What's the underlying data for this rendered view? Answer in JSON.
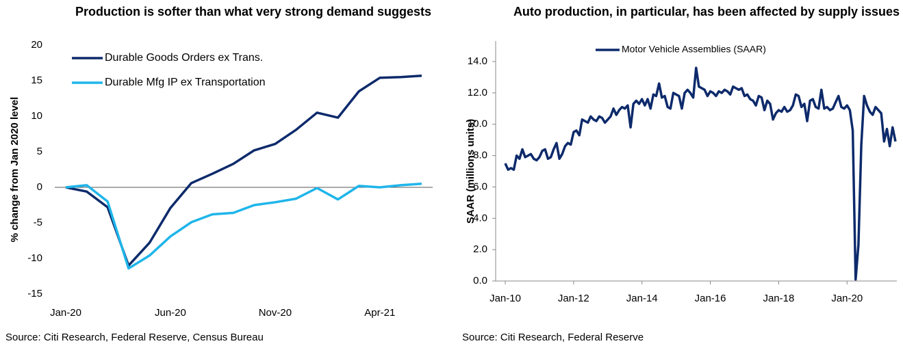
{
  "chart_data": [
    {
      "type": "line",
      "title": "Production is softer than what very strong demand suggests",
      "ylabel": "% change from Jan 2020 level",
      "source": "Source: Citi Research, Federal Reserve, Census Bureau",
      "categories": [
        "Jan-20",
        null,
        null,
        null,
        null,
        "Jun-20",
        null,
        null,
        null,
        null,
        "Nov-20",
        null,
        null,
        null,
        null,
        "Apr-21",
        null,
        null
      ],
      "series": [
        {
          "name": "Durable Goods Orders ex Trans.",
          "color": "#0d2a6b",
          "values": [
            0,
            -0.6,
            -2.8,
            -11,
            -7.8,
            -2.9,
            0.6,
            1.9,
            3.3,
            5.2,
            6.1,
            8.1,
            10.5,
            9.8,
            13.5,
            15.4,
            15.5,
            15.7
          ]
        },
        {
          "name": "Durable Mfg IP ex Transportation",
          "color": "#1fb5ea",
          "values": [
            0,
            0.3,
            -2,
            -11.4,
            -9.6,
            -6.9,
            -4.9,
            -3.8,
            -3.6,
            -2.5,
            -2.1,
            -1.6,
            -0.1,
            -1.7,
            0.2,
            0,
            0.3,
            0.5
          ]
        }
      ],
      "ylim": [
        -15,
        20
      ],
      "yticks": [
        -15,
        -10,
        -5,
        0,
        5,
        10,
        15,
        20
      ],
      "legend": "top-left",
      "zero_line": true
    },
    {
      "type": "line",
      "title": "Auto production, in particular, has been affected by supply issues",
      "ylabel": "SAAR (millions units)",
      "source": "Source: Citi Research, Federal Reserve",
      "categories": [
        "Jan-10",
        null,
        null,
        null,
        null,
        null,
        null,
        null,
        null,
        null,
        null,
        null,
        null,
        null,
        null,
        null,
        null,
        null,
        null,
        null,
        null,
        null,
        null,
        null,
        "Jan-12",
        null,
        null,
        null,
        null,
        null,
        null,
        null,
        null,
        null,
        null,
        null,
        null,
        null,
        null,
        null,
        null,
        null,
        null,
        null,
        null,
        null,
        null,
        null,
        "Jan-14",
        null,
        null,
        null,
        null,
        null,
        null,
        null,
        null,
        null,
        null,
        null,
        null,
        null,
        null,
        null,
        null,
        null,
        null,
        null,
        null,
        null,
        null,
        null,
        "Jan-16",
        null,
        null,
        null,
        null,
        null,
        null,
        null,
        null,
        null,
        null,
        null,
        null,
        null,
        null,
        null,
        null,
        null,
        null,
        null,
        null,
        null,
        null,
        null,
        "Jan-18",
        null,
        null,
        null,
        null,
        null,
        null,
        null,
        null,
        null,
        null,
        null,
        null,
        null,
        null,
        null,
        null,
        null,
        null,
        null,
        null,
        null,
        null,
        null,
        "Jan-20",
        null,
        null,
        null,
        null,
        null,
        null,
        null,
        null,
        null,
        null,
        null,
        null,
        null,
        null,
        null,
        null,
        null
      ],
      "series": [
        {
          "name": "Motor Vehicle Assemblies (SAAR)",
          "color": "#0d2a6b",
          "values": [
            7.5,
            7.1,
            7.2,
            7.1,
            8.0,
            7.8,
            8.4,
            7.9,
            8.0,
            8.1,
            7.8,
            7.7,
            7.9,
            8.3,
            8.4,
            7.8,
            7.9,
            8.4,
            8.8,
            7.8,
            8.1,
            8.6,
            8.8,
            8.7,
            9.5,
            9.6,
            9.3,
            10.3,
            10.2,
            10.1,
            10.5,
            10.3,
            10.2,
            10.5,
            10.4,
            10.1,
            10.3,
            10.5,
            11.0,
            10.6,
            10.9,
            11.1,
            11.0,
            11.2,
            9.8,
            11.3,
            11.5,
            11.3,
            11.6,
            11.2,
            11.6,
            11.0,
            11.9,
            11.8,
            12.6,
            11.7,
            11.8,
            11.1,
            11.0,
            12.0,
            11.9,
            11.8,
            11.0,
            12.0,
            12.2,
            12.0,
            11.7,
            13.6,
            12.4,
            12.3,
            12.2,
            11.8,
            12.1,
            12.0,
            11.8,
            12.1,
            12.0,
            12.2,
            12.1,
            11.9,
            12.4,
            12.3,
            12.2,
            12.3,
            11.8,
            11.9,
            11.6,
            11.5,
            11.2,
            11.8,
            11.7,
            10.9,
            11.5,
            11.3,
            10.3,
            10.7,
            10.9,
            10.8,
            11.1,
            10.8,
            10.9,
            11.2,
            11.9,
            11.8,
            11.1,
            11.3,
            10.2,
            11.5,
            11.6,
            11.1,
            11.0,
            12.2,
            11.0,
            11.1,
            10.9,
            11.0,
            11.4,
            11.8,
            11.1,
            11.0,
            11.2,
            10.9,
            9.6,
            0.1,
            2.3,
            8.7,
            11.8,
            11.2,
            10.8,
            10.6,
            11.1,
            10.9,
            10.7,
            8.9,
            9.7,
            8.6,
            9.8,
            8.9
          ]
        }
      ],
      "ylim": [
        0,
        14
      ],
      "yticks": [
        {
          "value": 0,
          "label": "0.0"
        },
        {
          "value": 2,
          "label": "2.0"
        },
        {
          "value": 4,
          "label": "4.0"
        },
        {
          "value": 6,
          "label": "6.0"
        },
        {
          "value": 8,
          "label": "8.0"
        },
        {
          "value": 10,
          "label": "10.0"
        },
        {
          "value": 12,
          "label": "12.0"
        },
        {
          "value": 14,
          "label": "14.0"
        }
      ],
      "legend": "top-center"
    }
  ]
}
